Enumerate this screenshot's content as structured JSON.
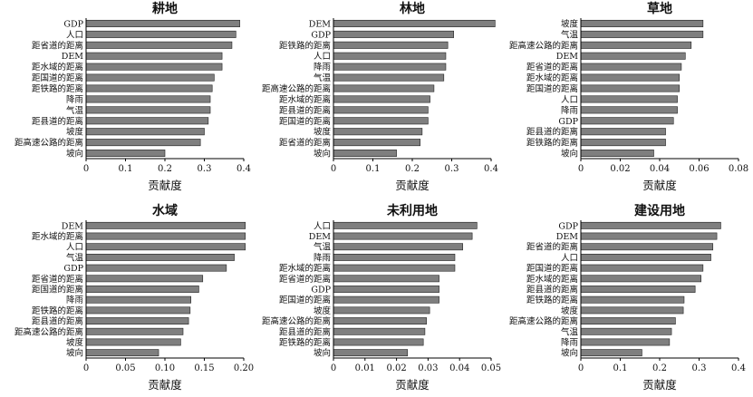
{
  "colors": {
    "bar_fill": "#7f7f7f",
    "bar_stroke": "#222222",
    "axis": "#000000"
  },
  "chart_data": [
    {
      "type": "bar",
      "orientation": "horizontal",
      "title": "耕地",
      "xlabel": "贡献度",
      "xlim": [
        0,
        0.4
      ],
      "xticks": [
        "0",
        "0.1",
        "0.2",
        "0.3",
        "0.4"
      ],
      "categories": [
        "GDP",
        "人口",
        "距省道的距离",
        "DEM",
        "距水域的距离",
        "距国道的距离",
        "距铁路的距离",
        "降雨",
        "气温",
        "距县道的距离",
        "坡度",
        "距高速公路的距离",
        "坡向"
      ],
      "values": [
        0.39,
        0.38,
        0.37,
        0.345,
        0.345,
        0.325,
        0.32,
        0.315,
        0.315,
        0.31,
        0.3,
        0.29,
        0.2
      ]
    },
    {
      "type": "bar",
      "orientation": "horizontal",
      "title": "林地",
      "xlabel": "贡献度",
      "xlim": [
        0,
        0.4
      ],
      "xticks": [
        "0",
        "0.1",
        "0.2",
        "0.3",
        "0.4"
      ],
      "categories": [
        "DEM",
        "GDP",
        "距铁路的距离",
        "人口",
        "降雨",
        "气温",
        "距高速公路的距离",
        "距水域的距离",
        "距县道的距离",
        "距国道的距离",
        "坡度",
        "距省道的距离",
        "坡向"
      ],
      "values": [
        0.41,
        0.305,
        0.29,
        0.285,
        0.285,
        0.28,
        0.255,
        0.245,
        0.24,
        0.24,
        0.225,
        0.22,
        0.16
      ]
    },
    {
      "type": "bar",
      "orientation": "horizontal",
      "title": "草地",
      "xlabel": "贡献度",
      "xlim": [
        0,
        0.08
      ],
      "xticks": [
        "0",
        "0.02",
        "0.04",
        "0.06",
        "0.08"
      ],
      "categories": [
        "坡度",
        "气温",
        "距高速公路的距离",
        "DEM",
        "距省道的距离",
        "距水域的距离",
        "距国道的距离",
        "人口",
        "降雨",
        "GDP",
        "距县道的距离",
        "距铁路的距离",
        "坡向"
      ],
      "values": [
        0.062,
        0.062,
        0.056,
        0.053,
        0.051,
        0.05,
        0.05,
        0.049,
        0.049,
        0.047,
        0.043,
        0.043,
        0.037
      ]
    },
    {
      "type": "bar",
      "orientation": "horizontal",
      "title": "水域",
      "xlabel": "贡献度",
      "xlim": [
        0,
        0.2
      ],
      "xticks": [
        "0",
        "0.05",
        "0.10",
        "0.15",
        "0.20"
      ],
      "categories": [
        "DEM",
        "距水域的距离",
        "人口",
        "气温",
        "GDP",
        "距省道的距离",
        "距国道的距离",
        "降雨",
        "距铁路的距离",
        "距县道的距离",
        "距高速公路的距离",
        "坡度",
        "坡向"
      ],
      "values": [
        0.202,
        0.202,
        0.202,
        0.188,
        0.178,
        0.148,
        0.143,
        0.133,
        0.132,
        0.13,
        0.123,
        0.12,
        0.092
      ]
    },
    {
      "type": "bar",
      "orientation": "horizontal",
      "title": "未利用地",
      "xlabel": "贡献度",
      "xlim": [
        0,
        0.05
      ],
      "xticks": [
        "0",
        "0.01",
        "0.02",
        "0.03",
        "0.04",
        "0.05"
      ],
      "categories": [
        "人口",
        "DEM",
        "气温",
        "降雨",
        "距水域的距离",
        "距省道的距离",
        "GDP",
        "距国道的距离",
        "坡度",
        "距高速公路的距离",
        "距县道的距离",
        "距铁路的距离",
        "坡向"
      ],
      "values": [
        0.0455,
        0.044,
        0.041,
        0.0385,
        0.0385,
        0.0335,
        0.0335,
        0.0335,
        0.0305,
        0.0295,
        0.029,
        0.0285,
        0.0235
      ]
    },
    {
      "type": "bar",
      "orientation": "horizontal",
      "title": "建设用地",
      "xlabel": "贡献度",
      "xlim": [
        0,
        0.4
      ],
      "xticks": [
        "0",
        "0.1",
        "0.2",
        "0.3",
        "0.4"
      ],
      "categories": [
        "GDP",
        "DEM",
        "距省道的距离",
        "人口",
        "距国道的距离",
        "距水域的距离",
        "距县道的距离",
        "距铁路的距离",
        "坡度",
        "距高速公路的距离",
        "气温",
        "降雨",
        "坡向"
      ],
      "values": [
        0.355,
        0.345,
        0.335,
        0.33,
        0.31,
        0.305,
        0.29,
        0.262,
        0.26,
        0.24,
        0.23,
        0.225,
        0.155
      ]
    }
  ]
}
